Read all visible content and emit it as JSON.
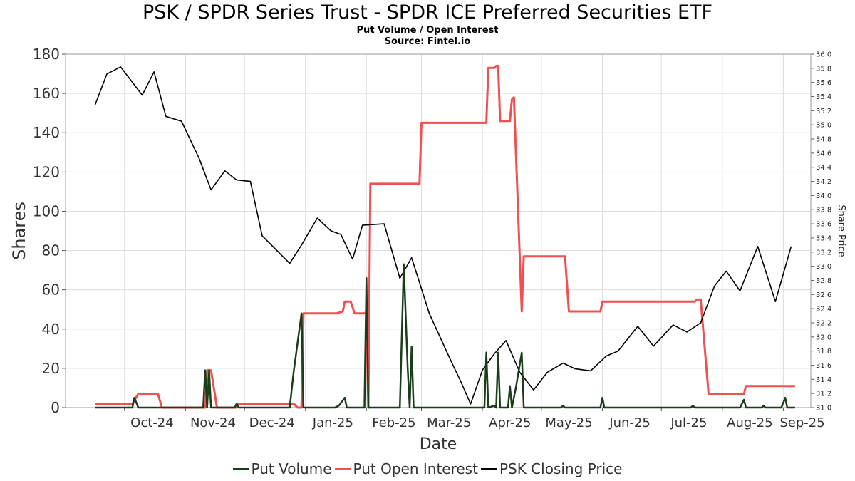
{
  "chart_data": {
    "type": "line",
    "title": "PSK / SPDR Series Trust - SPDR ICE Preferred Securities ETF",
    "subtitle": "Put Volume / Open Interest",
    "source": "Source: Fintel.io",
    "xlabel": "Date",
    "ylabel": "Shares",
    "y2label": "Share Price",
    "ylim": [
      0,
      180
    ],
    "y2lim": [
      31.0,
      36.0
    ],
    "yticks": [
      "0",
      "20",
      "40",
      "60",
      "80",
      "100",
      "120",
      "140",
      "160",
      "180"
    ],
    "y2ticks": [
      "31.0",
      "31.2",
      "31.4",
      "31.6",
      "31.8",
      "32.0",
      "32.2",
      "32.4",
      "32.6",
      "32.8",
      "33.0",
      "33.2",
      "33.4",
      "33.6",
      "33.8",
      "34.0",
      "34.2",
      "34.4",
      "34.6",
      "34.8",
      "35.0",
      "35.2",
      "35.4",
      "35.6",
      "35.8",
      "36.0"
    ],
    "xticks": [
      "Oct-24",
      "Nov-24",
      "Dec-24",
      "Jan-25",
      "Feb-25",
      "Mar-25",
      "Apr-25",
      "May-25",
      "Jun-25",
      "Jul-25",
      "Aug-25",
      "Sep-25"
    ],
    "grid": true,
    "legend_position": "bottom",
    "series": [
      {
        "name": "Put Volume",
        "axis": "left",
        "color": "#1a3d1a",
        "points": [
          [
            "2024-09-16",
            0
          ],
          [
            "2024-10-05",
            0
          ],
          [
            "2024-10-06",
            5
          ],
          [
            "2024-10-08",
            0
          ],
          [
            "2024-11-10",
            0
          ],
          [
            "2024-11-11",
            19
          ],
          [
            "2024-11-12",
            0
          ],
          [
            "2024-11-13",
            19
          ],
          [
            "2024-11-14",
            0
          ],
          [
            "2024-11-26",
            0
          ],
          [
            "2024-11-27",
            2
          ],
          [
            "2024-11-28",
            0
          ],
          [
            "2024-12-24",
            0
          ],
          [
            "2024-12-26",
            18
          ],
          [
            "2024-12-30",
            48
          ],
          [
            "2024-12-31",
            0
          ],
          [
            "2025-01-16",
            0
          ],
          [
            "2025-01-18",
            1
          ],
          [
            "2025-01-21",
            5
          ],
          [
            "2025-01-22",
            0
          ],
          [
            "2025-01-31",
            0
          ],
          [
            "2025-02-01",
            66
          ],
          [
            "2025-02-02",
            0
          ],
          [
            "2025-02-18",
            0
          ],
          [
            "2025-02-20",
            73
          ],
          [
            "2025-02-22",
            20
          ],
          [
            "2025-02-23",
            0
          ],
          [
            "2025-02-24",
            31
          ],
          [
            "2025-02-25",
            0
          ],
          [
            "2025-04-02",
            0
          ],
          [
            "2025-04-03",
            28
          ],
          [
            "2025-04-04",
            0
          ],
          [
            "2025-04-07",
            1
          ],
          [
            "2025-04-08",
            0
          ],
          [
            "2025-04-09",
            28
          ],
          [
            "2025-04-10",
            0
          ],
          [
            "2025-04-14",
            0
          ],
          [
            "2025-04-15",
            11
          ],
          [
            "2025-04-16",
            0
          ],
          [
            "2025-04-18",
            10
          ],
          [
            "2025-04-21",
            28
          ],
          [
            "2025-04-22",
            0
          ],
          [
            "2025-05-11",
            0
          ],
          [
            "2025-05-12",
            1
          ],
          [
            "2025-05-13",
            0
          ],
          [
            "2025-05-31",
            0
          ],
          [
            "2025-06-01",
            5
          ],
          [
            "2025-06-02",
            0
          ],
          [
            "2025-07-16",
            0
          ],
          [
            "2025-07-17",
            1
          ],
          [
            "2025-07-18",
            0
          ],
          [
            "2025-08-10",
            0
          ],
          [
            "2025-08-12",
            4
          ],
          [
            "2025-08-13",
            0
          ],
          [
            "2025-08-21",
            0
          ],
          [
            "2025-08-22",
            1
          ],
          [
            "2025-08-23",
            0
          ],
          [
            "2025-08-31",
            0
          ],
          [
            "2025-09-02",
            5
          ],
          [
            "2025-09-03",
            0
          ],
          [
            "2025-09-07",
            0
          ]
        ]
      },
      {
        "name": "Put Open Interest",
        "axis": "left",
        "color": "#f05050",
        "points": [
          [
            "2024-09-16",
            2
          ],
          [
            "2024-10-05",
            2
          ],
          [
            "2024-10-08",
            7
          ],
          [
            "2024-10-18",
            7
          ],
          [
            "2024-10-20",
            0
          ],
          [
            "2024-11-11",
            0
          ],
          [
            "2024-11-12",
            19
          ],
          [
            "2024-11-14",
            19
          ],
          [
            "2024-11-17",
            0
          ],
          [
            "2024-11-27",
            0
          ],
          [
            "2024-11-28",
            2
          ],
          [
            "2024-12-26",
            2
          ],
          [
            "2024-12-28",
            0
          ],
          [
            "2024-12-30",
            0
          ],
          [
            "2024-12-31",
            48
          ],
          [
            "2025-01-17",
            48
          ],
          [
            "2025-01-20",
            49
          ],
          [
            "2025-01-21",
            54
          ],
          [
            "2025-01-24",
            54
          ],
          [
            "2025-01-26",
            48
          ],
          [
            "2025-02-01",
            48
          ],
          [
            "2025-02-02",
            0
          ],
          [
            "2025-02-03",
            114
          ],
          [
            "2025-02-28",
            114
          ],
          [
            "2025-03-01",
            145
          ],
          [
            "2025-04-03",
            145
          ],
          [
            "2025-04-04",
            173
          ],
          [
            "2025-04-07",
            173
          ],
          [
            "2025-04-08",
            174
          ],
          [
            "2025-04-09",
            174
          ],
          [
            "2025-04-10",
            146
          ],
          [
            "2025-04-15",
            146
          ],
          [
            "2025-04-16",
            157
          ],
          [
            "2025-04-17",
            158
          ],
          [
            "2025-04-21",
            49
          ],
          [
            "2025-04-22",
            77
          ],
          [
            "2025-05-13",
            77
          ],
          [
            "2025-05-15",
            49
          ],
          [
            "2025-05-31",
            49
          ],
          [
            "2025-06-01",
            54
          ],
          [
            "2025-07-18",
            54
          ],
          [
            "2025-07-19",
            55
          ],
          [
            "2025-07-21",
            55
          ],
          [
            "2025-07-25",
            7
          ],
          [
            "2025-08-12",
            7
          ],
          [
            "2025-08-13",
            11
          ],
          [
            "2025-09-07",
            11
          ]
        ]
      },
      {
        "name": "PSK Closing Price",
        "axis": "right",
        "color": "#000000",
        "points": [
          [
            "2024-09-16",
            35.28
          ],
          [
            "2024-09-22",
            35.72
          ],
          [
            "2024-09-29",
            35.82
          ],
          [
            "2024-10-10",
            35.42
          ],
          [
            "2024-10-16",
            35.75
          ],
          [
            "2024-10-22",
            35.12
          ],
          [
            "2024-10-30",
            35.05
          ],
          [
            "2024-11-08",
            34.52
          ],
          [
            "2024-11-14",
            34.08
          ],
          [
            "2024-11-21",
            34.35
          ],
          [
            "2024-11-27",
            34.22
          ],
          [
            "2024-12-04",
            34.2
          ],
          [
            "2024-12-10",
            33.43
          ],
          [
            "2024-12-24",
            33.04
          ],
          [
            "2024-12-30",
            33.3
          ],
          [
            "2025-01-07",
            33.68
          ],
          [
            "2025-01-14",
            33.5
          ],
          [
            "2025-01-19",
            33.45
          ],
          [
            "2025-01-25",
            33.1
          ],
          [
            "2025-01-30",
            33.58
          ],
          [
            "2025-02-10",
            33.6
          ],
          [
            "2025-02-18",
            32.83
          ],
          [
            "2025-02-24",
            33.12
          ],
          [
            "2025-03-05",
            32.33
          ],
          [
            "2025-03-15",
            31.72
          ],
          [
            "2025-03-21",
            31.37
          ],
          [
            "2025-03-26",
            31.05
          ],
          [
            "2025-04-01",
            31.53
          ],
          [
            "2025-04-07",
            31.76
          ],
          [
            "2025-04-13",
            31.95
          ],
          [
            "2025-04-20",
            31.5
          ],
          [
            "2025-04-27",
            31.25
          ],
          [
            "2025-05-04",
            31.5
          ],
          [
            "2025-05-12",
            31.63
          ],
          [
            "2025-05-18",
            31.55
          ],
          [
            "2025-05-26",
            31.52
          ],
          [
            "2025-06-03",
            31.73
          ],
          [
            "2025-06-09",
            31.8
          ],
          [
            "2025-06-19",
            32.15
          ],
          [
            "2025-06-27",
            31.87
          ],
          [
            "2025-07-07",
            32.17
          ],
          [
            "2025-07-14",
            32.07
          ],
          [
            "2025-07-21",
            32.2
          ],
          [
            "2025-07-28",
            32.72
          ],
          [
            "2025-08-03",
            32.93
          ],
          [
            "2025-08-10",
            32.65
          ],
          [
            "2025-08-19",
            33.28
          ],
          [
            "2025-08-28",
            32.5
          ],
          [
            "2025-09-05",
            33.28
          ]
        ]
      }
    ]
  }
}
